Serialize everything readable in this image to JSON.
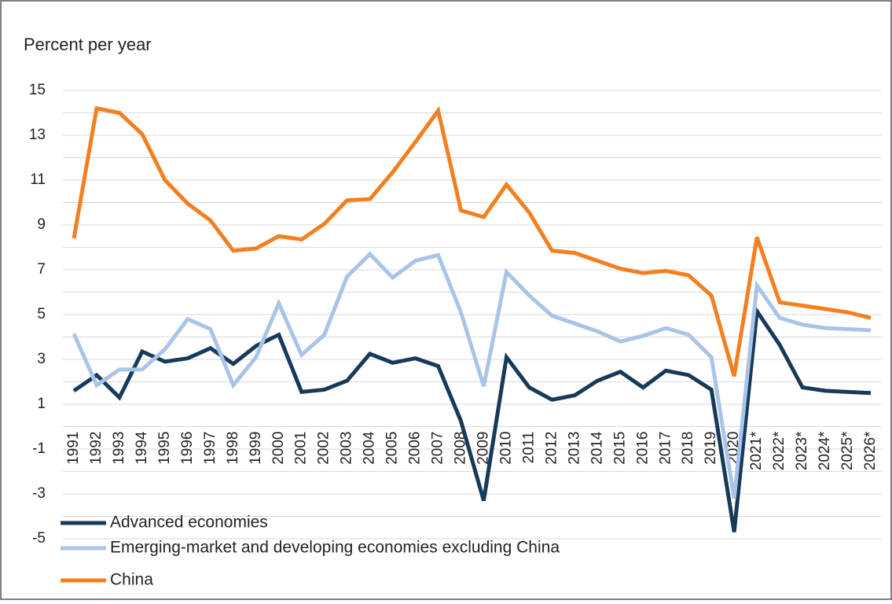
{
  "chart_data": {
    "type": "line",
    "y_label": "Percent per year",
    "categories": [
      "1991",
      "1992",
      "1993",
      "1994",
      "1995",
      "1996",
      "1997",
      "1998",
      "1999",
      "2000",
      "2001",
      "2002",
      "2003",
      "2004",
      "2005",
      "2006",
      "2007",
      "2008",
      "2009",
      "2010",
      "2011",
      "2012",
      "2013",
      "2014",
      "2015",
      "2016",
      "2017",
      "2018",
      "2019",
      "2020",
      "2021*",
      "2022*",
      "2023*",
      "2024*",
      "2025*",
      "2026*"
    ],
    "series": [
      {
        "name": "Advanced economies",
        "color": "#173a59",
        "values": [
          1.6,
          2.3,
          1.3,
          3.35,
          2.9,
          3.05,
          3.5,
          2.8,
          3.6,
          4.1,
          1.55,
          1.65,
          2.05,
          3.25,
          2.85,
          3.05,
          2.7,
          0.25,
          -3.3,
          3.1,
          1.75,
          1.2,
          1.4,
          2.05,
          2.45,
          1.75,
          2.5,
          2.3,
          1.65,
          -4.7,
          5.15,
          3.65,
          1.75,
          1.6,
          1.55,
          1.5
        ]
      },
      {
        "name": "Emerging-market and developing economies excluding China",
        "color": "#a9c4e8",
        "values": [
          4.15,
          1.85,
          2.55,
          2.55,
          3.45,
          4.8,
          4.35,
          1.85,
          3.1,
          5.5,
          3.2,
          4.1,
          6.7,
          7.7,
          6.65,
          7.4,
          7.65,
          5.1,
          1.8,
          6.9,
          5.85,
          4.95,
          4.6,
          4.25,
          3.8,
          4.05,
          4.4,
          4.1,
          3.1,
          -3.2,
          6.3,
          4.85,
          4.55,
          4.4,
          4.35,
          4.3
        ]
      },
      {
        "name": "China",
        "color": "#f47f20",
        "values": [
          8.4,
          14.2,
          14.0,
          13.05,
          11.0,
          9.95,
          9.2,
          7.85,
          7.95,
          8.5,
          8.35,
          9.05,
          10.1,
          10.15,
          11.35,
          12.7,
          14.1,
          9.65,
          9.35,
          10.8,
          9.55,
          7.85,
          7.75,
          7.4,
          7.05,
          6.85,
          6.95,
          6.75,
          5.85,
          2.25,
          8.45,
          5.55,
          5.4,
          5.25,
          5.1,
          4.85
        ]
      }
    ],
    "ylim": [
      -5,
      15
    ],
    "yticks": [
      -5,
      -3,
      -1,
      1,
      3,
      5,
      7,
      9,
      11,
      13,
      15
    ],
    "minor_yticks": [
      -4,
      -2,
      0,
      2,
      4,
      6,
      8,
      10,
      12,
      14
    ],
    "grid": true
  }
}
